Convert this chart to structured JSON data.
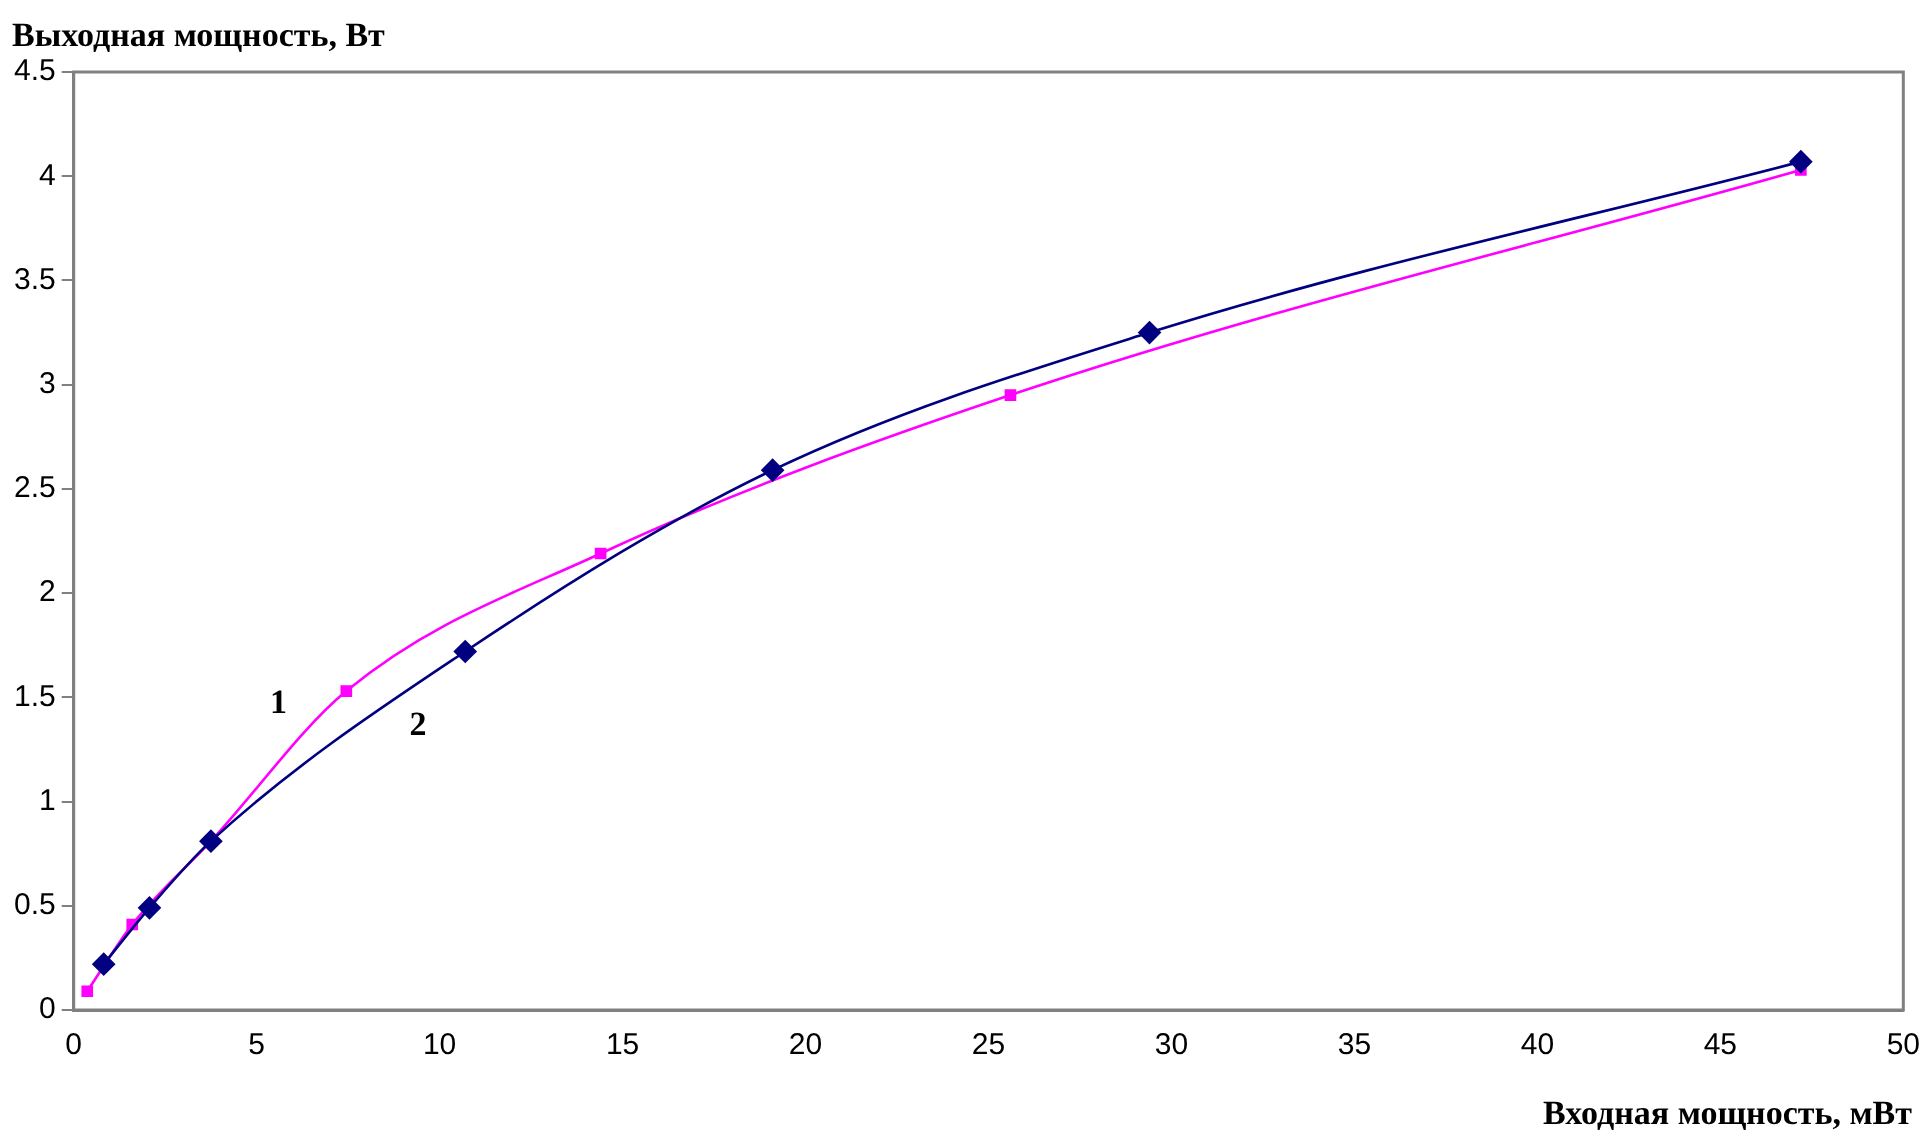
{
  "chart_data": {
    "type": "line",
    "xlabel": "Входная мощность, мВт",
    "ylabel": "Выходная мощность, Вт",
    "xlim": [
      0,
      50
    ],
    "xticks": [
      0,
      5,
      10,
      15,
      20,
      25,
      30,
      35,
      40,
      45,
      50
    ],
    "ylim": [
      0,
      4.5
    ],
    "yticks": [
      0,
      0.5,
      1,
      1.5,
      2,
      2.5,
      3,
      3.5,
      4,
      4.5
    ],
    "grid": false,
    "legend": false,
    "line_style": "solid",
    "series": [
      {
        "name": "1",
        "color": "#ff00ff",
        "marker": "square",
        "x": [
          0.37,
          1.6,
          3.75,
          7.45,
          14.4,
          25.6,
          47.2
        ],
        "values": [
          0.09,
          0.41,
          0.81,
          1.53,
          2.19,
          2.95,
          4.03
        ]
      },
      {
        "name": "2",
        "color": "#000080",
        "marker": "diamond",
        "x": [
          0.82,
          2.07,
          3.75,
          10.7,
          19.1,
          29.4,
          47.2
        ],
        "values": [
          0.22,
          0.49,
          0.81,
          1.72,
          2.59,
          3.25,
          4.07
        ]
      }
    ]
  }
}
